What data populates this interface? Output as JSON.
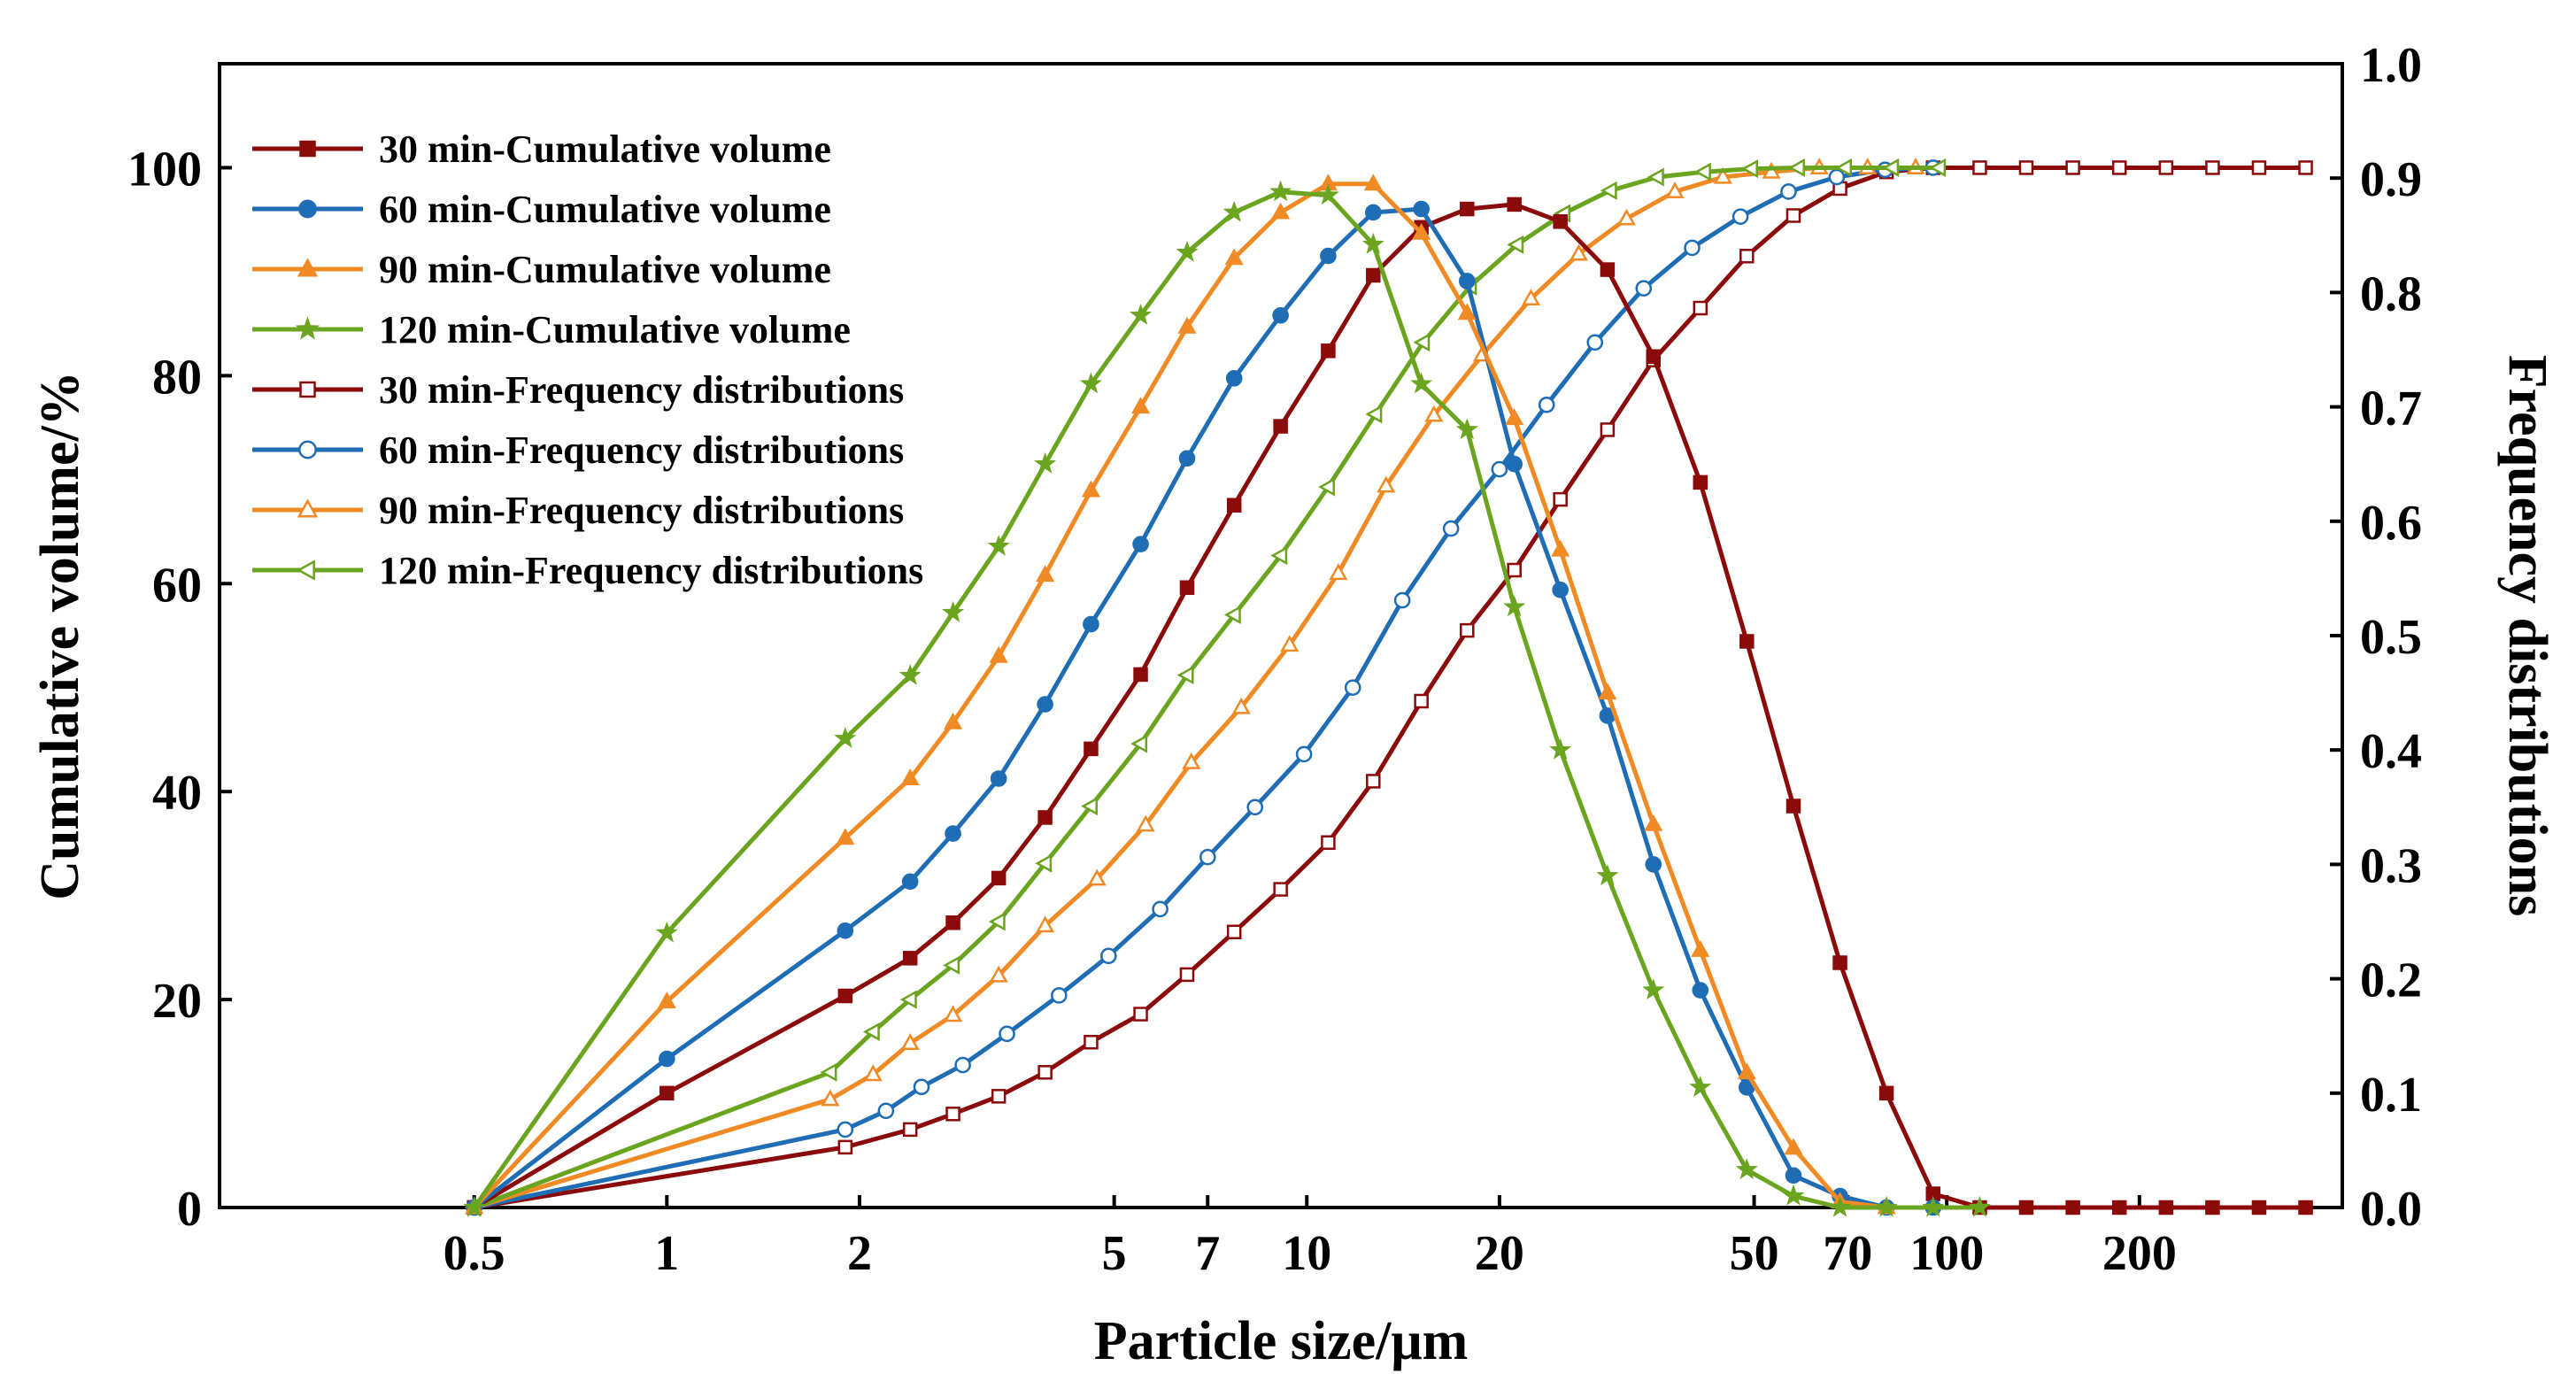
{
  "chart_data": {
    "type": "line",
    "title": "",
    "xlabel": "Particle size/μm",
    "ylabel_left": "Cumulative volume/%",
    "ylabel_right": "Frequency distributions",
    "x_scale": "log",
    "xlim": [
      0.2,
      415
    ],
    "ylim_left": [
      0,
      110
    ],
    "ylim_right": [
      0,
      1.0
    ],
    "x_ticks": [
      0.5,
      1,
      2,
      5,
      7,
      10,
      20,
      50,
      70,
      100,
      200
    ],
    "x_tick_labels": [
      "0.5",
      "1",
      "2",
      "5",
      "7",
      "10",
      "20",
      "50",
      "70",
      "100",
      "200"
    ],
    "y_left_ticks": [
      0,
      20,
      40,
      60,
      80,
      100
    ],
    "y_left_tick_labels": [
      "0",
      "20",
      "40",
      "60",
      "80",
      "100"
    ],
    "y_right_ticks": [
      0,
      0.1,
      0.2,
      0.3,
      0.4,
      0.5,
      0.6,
      0.7,
      0.8,
      0.9,
      1.0
    ],
    "y_right_tick_labels": [
      "0.0",
      "0.1",
      "0.2",
      "0.3",
      "0.4",
      "0.5",
      "0.6",
      "0.7",
      "0.8",
      "0.9",
      "1.0"
    ],
    "legend_position": "top-left",
    "series": [
      {
        "name": "30 min-Cumulative volume",
        "axis": "right",
        "color": "#8B0A0A",
        "marker": "square",
        "filled": true,
        "x": [
          0.5,
          1,
          1.9,
          2.4,
          2.8,
          3.3,
          3.9,
          4.6,
          5.5,
          6.5,
          7.7,
          9.1,
          10.8,
          12.7,
          15.1,
          17.8,
          21.1,
          24.9,
          29.5,
          34.8,
          41.2,
          48.7,
          57.6,
          68.1,
          80.5,
          95.2,
          112.6,
          133.1,
          157.4,
          186.1,
          220.1,
          260.2,
          307.6,
          363.7
        ],
        "y": [
          0.0,
          0.1,
          0.185,
          0.218,
          0.249,
          0.288,
          0.341,
          0.401,
          0.466,
          0.542,
          0.614,
          0.683,
          0.749,
          0.815,
          0.857,
          0.873,
          0.877,
          0.862,
          0.82,
          0.744,
          0.634,
          0.495,
          0.351,
          0.214,
          0.1,
          0.012,
          0.0,
          0.0,
          0.0,
          0.0,
          0.0,
          0.0,
          0.0,
          0.0
        ]
      },
      {
        "name": "60 min-Cumulative volume",
        "axis": "right",
        "color": "#1F6DB5",
        "marker": "circle",
        "filled": true,
        "x": [
          0.5,
          1,
          1.9,
          2.4,
          2.8,
          3.3,
          3.9,
          4.6,
          5.5,
          6.5,
          7.7,
          9.1,
          10.8,
          12.7,
          15.1,
          17.8,
          21.1,
          24.9,
          29.5,
          34.8,
          41.2,
          48.7,
          57.6,
          68.1,
          80.5,
          95.2
        ],
        "y": [
          0.0,
          0.13,
          0.242,
          0.285,
          0.327,
          0.375,
          0.44,
          0.51,
          0.58,
          0.655,
          0.725,
          0.78,
          0.832,
          0.87,
          0.873,
          0.81,
          0.65,
          0.54,
          0.43,
          0.3,
          0.19,
          0.105,
          0.028,
          0.01,
          0.0,
          0.0
        ]
      },
      {
        "name": "90 min-Cumulative volume",
        "axis": "right",
        "color": "#F08A24",
        "marker": "triangle",
        "filled": true,
        "x": [
          0.5,
          1,
          1.9,
          2.4,
          2.8,
          3.3,
          3.9,
          4.6,
          5.5,
          6.5,
          7.7,
          9.1,
          10.8,
          12.7,
          15.1,
          17.8,
          21.1,
          24.9,
          29.5,
          34.8,
          41.2,
          48.7,
          57.6,
          68.1,
          80.5
        ],
        "y": [
          0.0,
          0.18,
          0.323,
          0.375,
          0.424,
          0.482,
          0.553,
          0.627,
          0.7,
          0.77,
          0.83,
          0.87,
          0.895,
          0.895,
          0.852,
          0.782,
          0.69,
          0.575,
          0.45,
          0.335,
          0.225,
          0.118,
          0.052,
          0.005,
          0.0
        ]
      },
      {
        "name": "120 min-Cumulative volume",
        "axis": "right",
        "color": "#6BA520",
        "marker": "star",
        "filled": true,
        "x": [
          0.5,
          1,
          1.9,
          2.4,
          2.8,
          3.3,
          3.9,
          4.6,
          5.5,
          6.5,
          7.7,
          9.1,
          10.8,
          12.7,
          15.1,
          17.8,
          21.1,
          24.9,
          29.5,
          34.8,
          41.2,
          48.7,
          57.6,
          68.1,
          80.5,
          95.2,
          112.6
        ],
        "y": [
          0.0,
          0.24,
          0.41,
          0.465,
          0.52,
          0.578,
          0.65,
          0.72,
          0.78,
          0.835,
          0.87,
          0.888,
          0.885,
          0.842,
          0.72,
          0.68,
          0.525,
          0.4,
          0.29,
          0.19,
          0.105,
          0.033,
          0.01,
          0.0,
          0.0,
          0.0,
          0.0
        ]
      },
      {
        "name": "30  min-Frequency distributions",
        "axis": "left",
        "color": "#8B0A0A",
        "marker": "square",
        "filled": false,
        "x": [
          0.5,
          1.9,
          2.4,
          2.8,
          3.3,
          3.9,
          4.6,
          5.5,
          6.5,
          7.7,
          9.1,
          10.8,
          12.7,
          15.1,
          17.8,
          21.1,
          24.9,
          29.5,
          34.8,
          41.2,
          48.7,
          57.6,
          68.1,
          80.5,
          95.2,
          112.6,
          133.1,
          157.4,
          186.1,
          220.1,
          260.2,
          307.6,
          363.7
        ],
        "y": [
          0.0,
          5.8,
          7.5,
          9.0,
          10.7,
          13.0,
          15.9,
          18.6,
          22.4,
          26.5,
          30.6,
          35.1,
          41.0,
          48.7,
          55.5,
          61.3,
          68.1,
          74.8,
          81.5,
          86.5,
          91.5,
          95.4,
          98.0,
          99.6,
          100,
          100,
          100,
          100,
          100,
          100,
          100,
          100,
          100
        ]
      },
      {
        "name": "60  min-Frequency distributions",
        "axis": "left",
        "color": "#1F6DB5",
        "marker": "circle",
        "filled": false,
        "x": [
          0.5,
          1.9,
          2.2,
          2.5,
          2.9,
          3.4,
          4.1,
          4.9,
          5.9,
          7.0,
          8.3,
          9.9,
          11.8,
          14.1,
          16.8,
          20.0,
          23.7,
          28.2,
          33.6,
          40.0,
          47.6,
          56.6,
          67.3,
          80.1,
          95.2
        ],
        "y": [
          0.0,
          7.5,
          9.3,
          11.6,
          13.7,
          16.7,
          20.4,
          24.2,
          28.7,
          33.7,
          38.5,
          43.6,
          50.0,
          58.4,
          65.3,
          71.0,
          77.2,
          83.2,
          88.4,
          92.3,
          95.3,
          97.7,
          99.1,
          99.8,
          100
        ]
      },
      {
        "name": "90  min-Frequency distributions",
        "axis": "left",
        "color": "#F08A24",
        "marker": "triangle",
        "filled": false,
        "x": [
          0.5,
          1.8,
          2.1,
          2.4,
          2.8,
          3.3,
          3.9,
          4.7,
          5.6,
          6.6,
          7.9,
          9.4,
          11.2,
          13.3,
          15.8,
          18.8,
          22.4,
          26.6,
          31.6,
          37.6,
          44.7,
          53.2,
          63.2,
          75.2,
          89.4
        ],
        "y": [
          0.0,
          10.4,
          12.8,
          15.8,
          18.5,
          22.3,
          27.1,
          31.6,
          36.8,
          42.8,
          48.1,
          54.1,
          61.0,
          69.4,
          76.2,
          82.0,
          87.4,
          91.7,
          95.1,
          97.7,
          99.1,
          99.6,
          100,
          100,
          100
        ]
      },
      {
        "name": "120  min-Frequency distributions",
        "axis": "left",
        "color": "#6BA520",
        "marker": "tri-left",
        "filled": false,
        "x": [
          0.5,
          1.8,
          2.1,
          2.4,
          2.8,
          3.3,
          3.9,
          4.6,
          5.5,
          6.5,
          7.7,
          9.1,
          10.8,
          12.8,
          15.2,
          18.0,
          21.3,
          25.2,
          29.8,
          35.3,
          41.8,
          49.5,
          58.6,
          69.4,
          82.2,
          97.3
        ],
        "y": [
          0.0,
          13.0,
          16.9,
          20.0,
          23.3,
          27.5,
          33.1,
          38.6,
          44.6,
          51.2,
          57.0,
          62.7,
          69.3,
          76.3,
          83.2,
          88.6,
          92.6,
          95.6,
          97.8,
          99.1,
          99.6,
          99.9,
          100,
          100,
          100,
          100
        ]
      }
    ]
  }
}
